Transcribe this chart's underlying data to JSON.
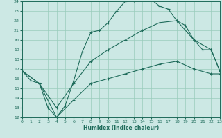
{
  "xlabel": "Humidex (Indice chaleur)",
  "bg_color": "#cce8e4",
  "grid_color": "#99ccbb",
  "line_color": "#1e6b5a",
  "xlim": [
    0,
    23
  ],
  "ylim": [
    12,
    24
  ],
  "xticks": [
    0,
    1,
    2,
    3,
    4,
    5,
    6,
    7,
    8,
    9,
    10,
    11,
    12,
    13,
    14,
    15,
    16,
    17,
    18,
    19,
    20,
    21,
    22,
    23
  ],
  "yticks": [
    12,
    13,
    14,
    15,
    16,
    17,
    18,
    19,
    20,
    21,
    22,
    23,
    24
  ],
  "line1_x": [
    0,
    1,
    2,
    3,
    4,
    5,
    6,
    7,
    8,
    9,
    10,
    11,
    12,
    13,
    14,
    15,
    16,
    17,
    18,
    19,
    20,
    21,
    22,
    23
  ],
  "line1_y": [
    16.8,
    15.8,
    15.5,
    13.0,
    12.0,
    13.2,
    15.8,
    18.8,
    20.8,
    21.0,
    21.8,
    23.0,
    24.0,
    24.1,
    24.2,
    24.2,
    23.5,
    23.2,
    22.0,
    21.5,
    20.0,
    19.0,
    19.0,
    16.8
  ],
  "line2_x": [
    0,
    2,
    4,
    6,
    8,
    10,
    12,
    14,
    16,
    18,
    20,
    22,
    23
  ],
  "line2_y": [
    16.8,
    15.5,
    13.0,
    15.5,
    17.8,
    19.0,
    20.0,
    21.0,
    21.8,
    22.0,
    20.0,
    19.0,
    16.8
  ],
  "line3_x": [
    0,
    2,
    4,
    6,
    8,
    10,
    12,
    14,
    16,
    18,
    20,
    22,
    23
  ],
  "line3_y": [
    16.8,
    15.5,
    12.0,
    13.8,
    15.5,
    16.0,
    16.5,
    17.0,
    17.5,
    17.8,
    17.0,
    16.5,
    16.5
  ]
}
